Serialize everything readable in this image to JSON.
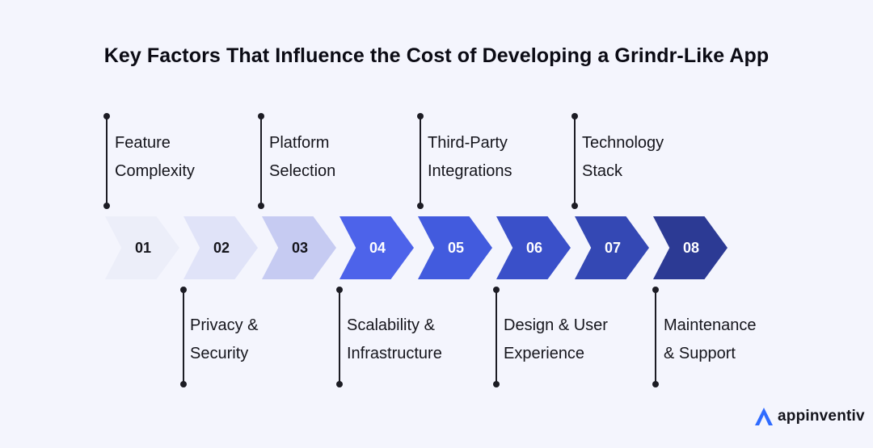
{
  "title": "Key Factors That Influence the Cost of Developing a Grindr-Like App",
  "steps": [
    {
      "number": "01",
      "label_line1": "Feature",
      "label_line2": "Complexity",
      "position": "top",
      "fill": "#eceef9",
      "text_color": "#15151c"
    },
    {
      "number": "02",
      "label_line1": "Privacy &",
      "label_line2": "Security",
      "position": "bottom",
      "fill": "#e0e3f8",
      "text_color": "#15151c"
    },
    {
      "number": "03",
      "label_line1": "Platform",
      "label_line2": "Selection",
      "position": "top",
      "fill": "#c6cbf2",
      "text_color": "#15151c"
    },
    {
      "number": "04",
      "label_line1": "Scalability &",
      "label_line2": "Infrastructure",
      "position": "bottom",
      "fill": "#4d63ea",
      "text_color": "#ffffff"
    },
    {
      "number": "05",
      "label_line1": "Third-Party",
      "label_line2": "Integrations",
      "position": "top",
      "fill": "#425bde",
      "text_color": "#ffffff"
    },
    {
      "number": "06",
      "label_line1": "Design & User",
      "label_line2": "Experience",
      "position": "bottom",
      "fill": "#3a50c9",
      "text_color": "#ffffff"
    },
    {
      "number": "07",
      "label_line1": "Technology",
      "label_line2": "Stack",
      "position": "top",
      "fill": "#3448b4",
      "text_color": "#ffffff"
    },
    {
      "number": "08",
      "label_line1": "Maintenance",
      "label_line2": "& Support",
      "position": "bottom",
      "fill": "#2c3a94",
      "text_color": "#ffffff"
    }
  ],
  "brand": {
    "name": "appinventiv",
    "logo_color": "#2f6bff"
  }
}
